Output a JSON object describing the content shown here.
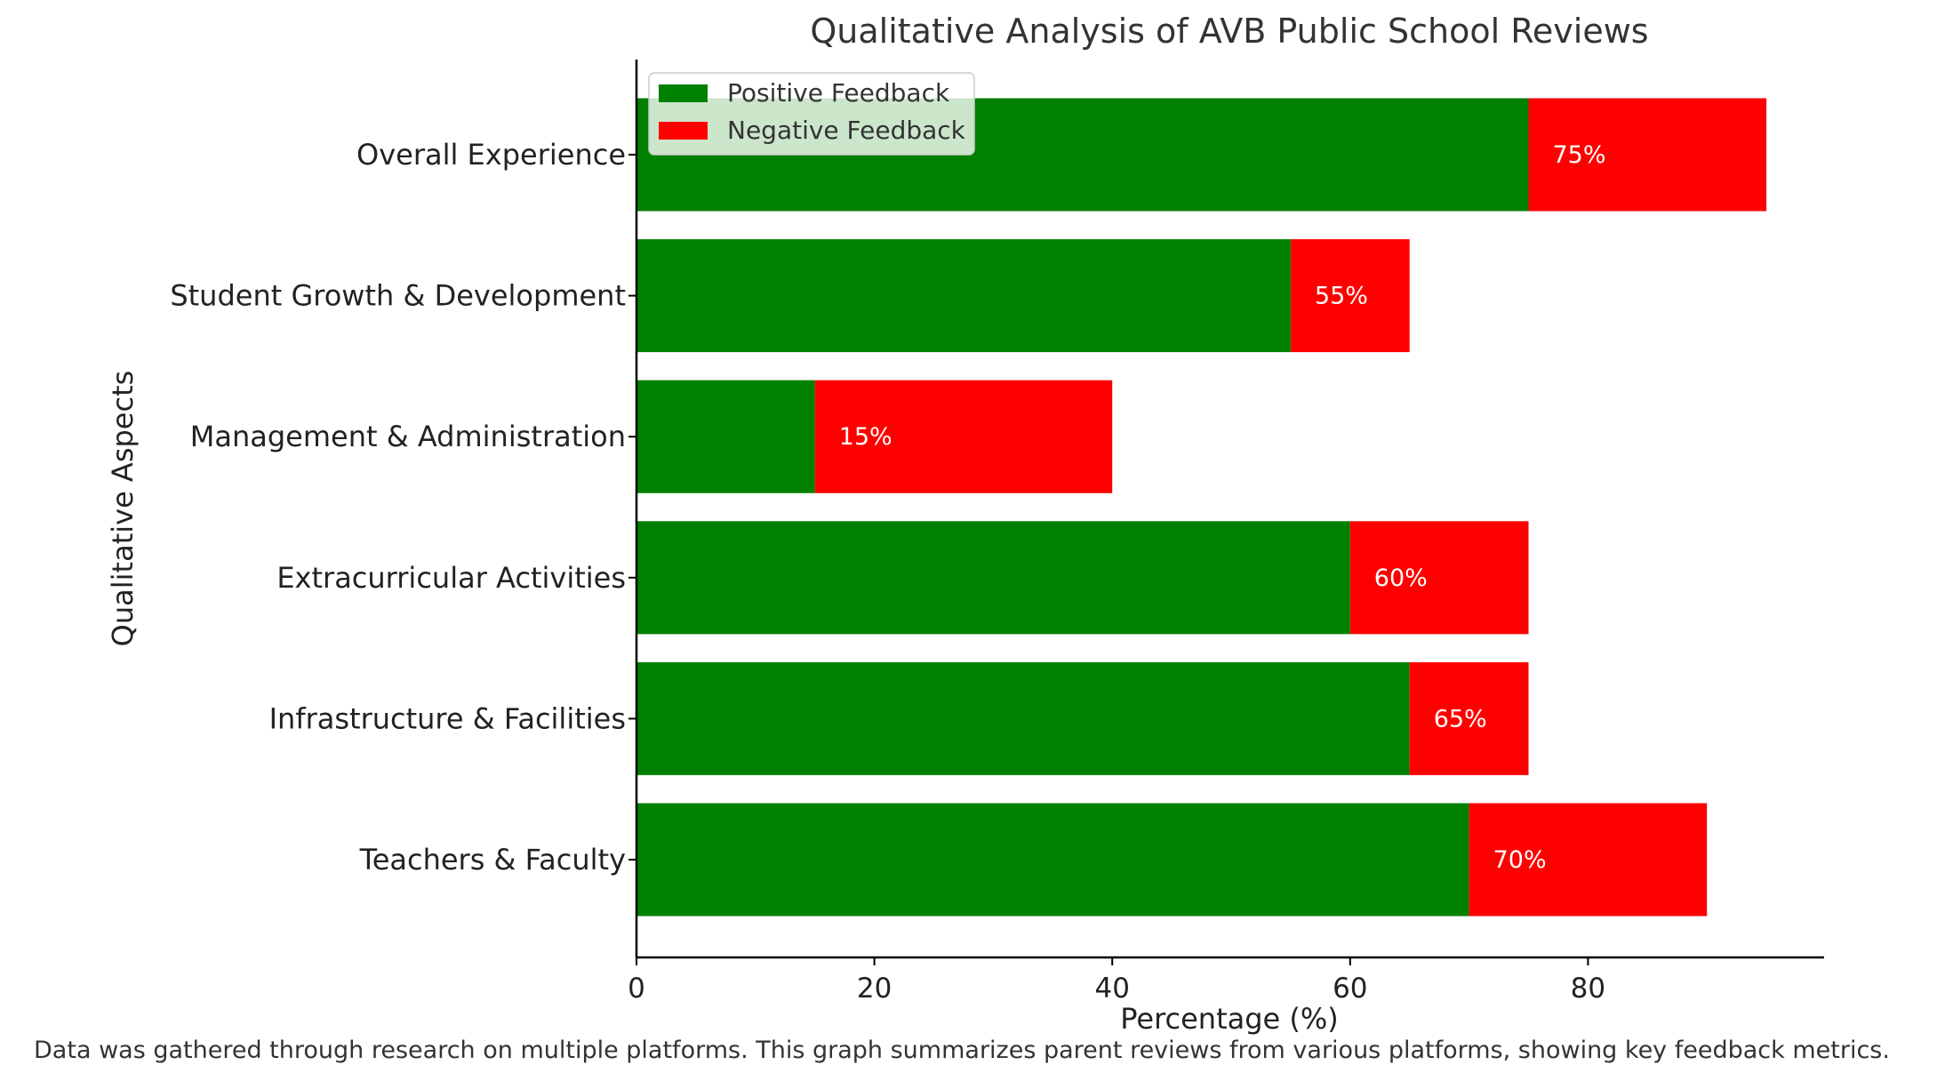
{
  "chart_data": {
    "type": "bar",
    "orientation": "horizontal",
    "stacked": true,
    "title": "Qualitative Analysis of AVB Public School Reviews",
    "xlabel": "Percentage (%)",
    "ylabel": "Qualitative Aspects",
    "xlim": [
      0,
      100
    ],
    "xticks": [
      "0",
      "20",
      "40",
      "60",
      "80"
    ],
    "categories": [
      "Teachers & Faculty",
      "Infrastructure & Facilities",
      "Extracurricular Activities",
      "Management & Administration",
      "Student Growth & Development",
      "Overall Experience"
    ],
    "series": [
      {
        "name": "Positive Feedback",
        "color": "#008000",
        "values": [
          70,
          65,
          60,
          15,
          55,
          75
        ]
      },
      {
        "name": "Negative Feedback",
        "color": "#ff0000",
        "values": [
          20,
          10,
          15,
          25,
          10,
          20
        ]
      }
    ],
    "data_labels": [
      "70%",
      "65%",
      "60%",
      "15%",
      "55%",
      "75%"
    ],
    "legend_position": "top-left",
    "grid": false,
    "caption": "Data was gathered through research on multiple platforms. This graph summarizes parent reviews from various platforms, showing key feedback metrics."
  }
}
